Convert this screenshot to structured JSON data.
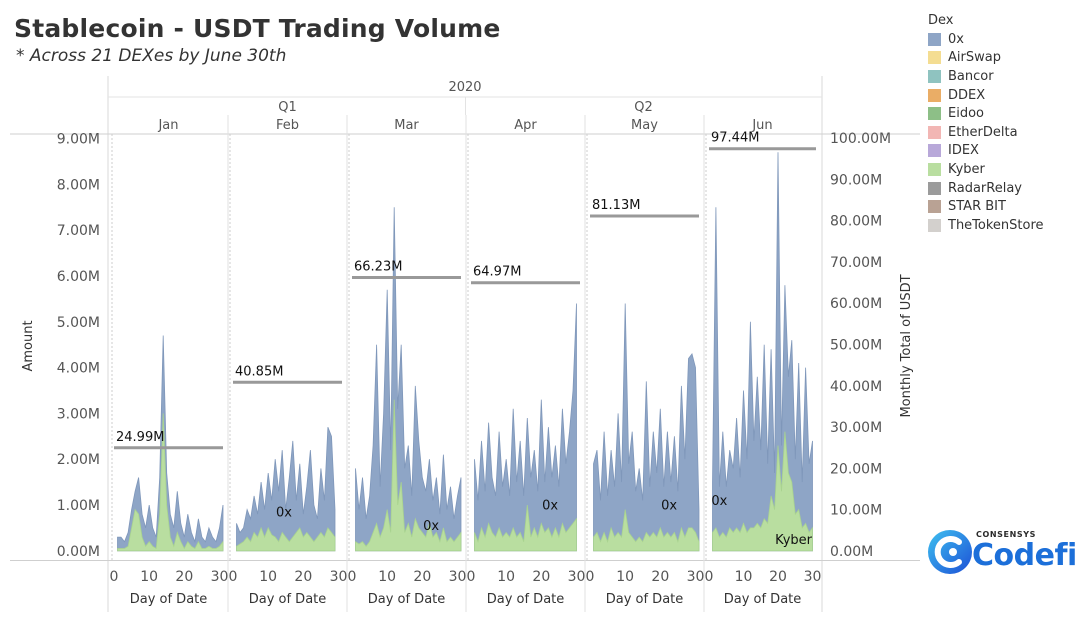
{
  "page": {
    "title": "Stablecoin - USDT Trading Volume",
    "subtitle": "* Across 21 DEXes by June 30th"
  },
  "legend": {
    "title": "Dex",
    "items": [
      {
        "label": "0x",
        "color": "#8ea5c6"
      },
      {
        "label": "AirSwap",
        "color": "#f4dd92"
      },
      {
        "label": "Bancor",
        "color": "#8fc3c0"
      },
      {
        "label": "DDEX",
        "color": "#eaad66"
      },
      {
        "label": "Eidoo",
        "color": "#8dbf87"
      },
      {
        "label": "EtherDelta",
        "color": "#f2b6b4"
      },
      {
        "label": "IDEX",
        "color": "#b8a8d9"
      },
      {
        "label": "Kyber",
        "color": "#b9dea0"
      },
      {
        "label": "RadarRelay",
        "color": "#9b9b9b"
      },
      {
        "label": "STAR BIT",
        "color": "#b9a294"
      },
      {
        "label": "TheTokenStore",
        "color": "#d3d0cd"
      }
    ]
  },
  "logo": {
    "top_text": "CONSENSYS",
    "main_text": "Codefi",
    "accent": "#1c6fd9"
  },
  "chart_data": {
    "type": "area",
    "year_label": "2020",
    "quarters": [
      {
        "label": "Q1",
        "months": [
          "Jan",
          "Feb",
          "Mar"
        ]
      },
      {
        "label": "Q2",
        "months": [
          "Apr",
          "May",
          "Jun"
        ]
      }
    ],
    "ylabel": "Amount",
    "y2label": "Monthly Total of USDT",
    "xlabel": "Day of Date",
    "y_ticks": [
      "0.00M",
      "1.00M",
      "2.00M",
      "3.00M",
      "4.00M",
      "5.00M",
      "6.00M",
      "7.00M",
      "8.00M",
      "9.00M"
    ],
    "y_tick_values": [
      0,
      1,
      2,
      3,
      4,
      5,
      6,
      7,
      8,
      9
    ],
    "ylim": [
      -0.2,
      9.1
    ],
    "y2_ticks": [
      "0.00M",
      "10.00M",
      "20.00M",
      "30.00M",
      "40.00M",
      "50.00M",
      "60.00M",
      "70.00M",
      "80.00M",
      "90.00M",
      "100.00M"
    ],
    "y2_tick_values": [
      0,
      10,
      20,
      30,
      40,
      50,
      60,
      70,
      80,
      90,
      100
    ],
    "y2lim": [
      -2.2,
      101.0
    ],
    "x_ticks": [
      "0",
      "10",
      "20",
      "30"
    ],
    "x_tick_values": [
      0,
      10,
      20,
      30
    ],
    "xlim": [
      0,
      31
    ],
    "series_colors": {
      "0x": "#8ea5c6",
      "Kyber": "#b9dea0"
    },
    "total_line_color": "#999999",
    "panels": [
      {
        "month": "Jan",
        "monthly_total": 24.99,
        "monthly_total_label": "24.99M",
        "area_label": "",
        "area_label_pos": [
          0,
          0
        ],
        "days": [
          1,
          2,
          3,
          4,
          5,
          6,
          7,
          8,
          9,
          10,
          11,
          12,
          13,
          14,
          15,
          16,
          17,
          18,
          19,
          20,
          21,
          22,
          23,
          24,
          25,
          26,
          27,
          28,
          29,
          30,
          31
        ],
        "series": [
          {
            "name": "0x",
            "values": [
              0.3,
              0.3,
              0.2,
              0.4,
              0.9,
              1.3,
              1.6,
              0.8,
              0.5,
              1.0,
              0.5,
              0.3,
              1.6,
              4.7,
              1.7,
              0.8,
              0.5,
              1.3,
              0.6,
              0.3,
              0.8,
              0.4,
              0.2,
              0.7,
              0.3,
              0.2,
              0.5,
              0.3,
              0.2,
              0.5,
              1.0
            ]
          },
          {
            "name": "Kyber",
            "values": [
              0.05,
              0.05,
              0.05,
              0.1,
              0.5,
              0.9,
              0.8,
              0.3,
              0.1,
              0.2,
              0.1,
              0.05,
              0.8,
              3.0,
              1.0,
              0.3,
              0.1,
              0.4,
              0.2,
              0.05,
              0.2,
              0.1,
              0.05,
              0.2,
              0.05,
              0.05,
              0.1,
              0.05,
              0.05,
              0.1,
              0.2
            ]
          }
        ]
      },
      {
        "month": "Feb",
        "monthly_total": 40.85,
        "monthly_total_label": "40.85M",
        "area_label": "0x",
        "area_label_pos": [
          14.5,
          0.75
        ],
        "days": [
          1,
          2,
          3,
          4,
          5,
          6,
          7,
          8,
          9,
          10,
          11,
          12,
          13,
          14,
          15,
          16,
          17,
          18,
          19,
          20,
          21,
          22,
          23,
          24,
          25,
          26,
          27,
          28,
          29
        ],
        "series": [
          {
            "name": "0x",
            "values": [
              0.6,
              0.4,
              0.5,
              0.9,
              0.7,
              1.2,
              0.8,
              1.5,
              0.9,
              1.7,
              1.1,
              2.0,
              1.3,
              2.2,
              0.9,
              1.6,
              2.4,
              1.1,
              1.9,
              0.8,
              1.4,
              2.2,
              1.0,
              0.7,
              1.8,
              1.1,
              2.7,
              2.5,
              0.9
            ]
          },
          {
            "name": "Kyber",
            "values": [
              0.1,
              0.15,
              0.2,
              0.3,
              0.2,
              0.4,
              0.3,
              0.5,
              0.3,
              0.5,
              0.35,
              0.3,
              0.2,
              0.4,
              0.3,
              0.2,
              0.3,
              0.4,
              0.5,
              0.3,
              0.4,
              0.3,
              0.2,
              0.3,
              0.4,
              0.3,
              0.5,
              0.4,
              0.3
            ]
          }
        ]
      },
      {
        "month": "Mar",
        "monthly_total": 66.23,
        "monthly_total_label": "66.23M",
        "area_label": "0x",
        "area_label_pos": [
          22.5,
          0.45
        ],
        "days": [
          1,
          2,
          3,
          4,
          5,
          6,
          7,
          8,
          9,
          10,
          11,
          12,
          13,
          14,
          15,
          16,
          17,
          18,
          19,
          20,
          21,
          22,
          23,
          24,
          25,
          26,
          27,
          28,
          29,
          30,
          31
        ],
        "series": [
          {
            "name": "0x",
            "values": [
              1.8,
              0.9,
              1.6,
              0.7,
              1.2,
              2.3,
              4.5,
              1.4,
              3.0,
              5.7,
              2.2,
              7.5,
              3.1,
              4.5,
              1.8,
              2.3,
              1.2,
              3.6,
              2.4,
              1.6,
              1.3,
              2.0,
              1.1,
              1.6,
              0.8,
              2.1,
              0.9,
              1.4,
              0.7,
              1.2,
              1.6
            ]
          },
          {
            "name": "Kyber",
            "values": [
              0.2,
              0.15,
              0.2,
              0.1,
              0.2,
              0.4,
              0.6,
              0.3,
              0.5,
              0.9,
              0.4,
              3.3,
              1.0,
              1.5,
              0.4,
              0.6,
              0.3,
              0.7,
              0.5,
              0.4,
              0.3,
              0.6,
              0.3,
              0.4,
              0.2,
              0.5,
              0.2,
              0.3,
              0.2,
              0.3,
              0.4
            ]
          }
        ]
      },
      {
        "month": "Apr",
        "monthly_total": 64.97,
        "monthly_total_label": "64.97M",
        "area_label": "0x",
        "area_label_pos": [
          22.5,
          0.9
        ],
        "days": [
          1,
          2,
          3,
          4,
          5,
          6,
          7,
          8,
          9,
          10,
          11,
          12,
          13,
          14,
          15,
          16,
          17,
          18,
          19,
          20,
          21,
          22,
          23,
          24,
          25,
          26,
          27,
          28,
          29,
          30
        ],
        "series": [
          {
            "name": "0x",
            "values": [
              2.0,
              1.1,
              2.4,
              1.3,
              2.8,
              1.6,
              1.2,
              2.6,
              1.4,
              2.0,
              1.2,
              3.1,
              1.5,
              2.4,
              1.2,
              2.9,
              1.6,
              2.2,
              1.3,
              3.3,
              1.5,
              2.7,
              1.6,
              2.3,
              1.4,
              3.1,
              1.9,
              2.6,
              3.5,
              5.4
            ]
          },
          {
            "name": "Kyber",
            "values": [
              0.4,
              0.2,
              0.5,
              0.3,
              0.6,
              0.4,
              0.3,
              0.5,
              0.3,
              0.4,
              0.3,
              0.5,
              0.3,
              0.4,
              0.2,
              1.0,
              0.3,
              0.5,
              0.3,
              0.6,
              0.4,
              0.5,
              0.3,
              0.5,
              0.3,
              0.6,
              0.4,
              0.5,
              0.6,
              0.7
            ]
          }
        ]
      },
      {
        "month": "May",
        "monthly_total": 81.13,
        "monthly_total_label": "81.13M",
        "area_label": "0x",
        "area_label_pos": [
          22.5,
          0.9
        ],
        "days": [
          1,
          2,
          3,
          4,
          5,
          6,
          7,
          8,
          9,
          10,
          11,
          12,
          13,
          14,
          15,
          16,
          17,
          18,
          19,
          20,
          21,
          22,
          23,
          24,
          25,
          26,
          27,
          28,
          29,
          30,
          31
        ],
        "series": [
          {
            "name": "0x",
            "values": [
              1.9,
              2.2,
              1.1,
              2.6,
              1.2,
              2.2,
              1.4,
              3.0,
              1.5,
              5.4,
              1.9,
              2.6,
              1.3,
              1.8,
              1.1,
              3.7,
              1.4,
              2.6,
              1.7,
              3.1,
              1.4,
              2.6,
              1.5,
              2.5,
              1.3,
              3.6,
              2.0,
              4.2,
              4.3,
              4.0,
              0.9
            ]
          },
          {
            "name": "Kyber",
            "values": [
              0.3,
              0.4,
              0.2,
              0.4,
              0.2,
              0.5,
              0.3,
              0.4,
              0.3,
              0.9,
              0.4,
              0.3,
              0.2,
              0.3,
              0.2,
              0.4,
              0.3,
              0.4,
              0.3,
              0.5,
              0.3,
              0.4,
              0.3,
              0.4,
              0.2,
              0.5,
              0.3,
              0.5,
              0.5,
              0.4,
              0.2
            ]
          }
        ]
      },
      {
        "month": "Jun",
        "monthly_total": 97.44,
        "monthly_total_label": "97.44M",
        "area_label": "0x",
        "area_label_pos": [
          3.0,
          1.0
        ],
        "area_label_2": "Kyber",
        "area_label_2_pos": [
          24.5,
          0.15
        ],
        "days": [
          1,
          2,
          3,
          4,
          5,
          6,
          7,
          8,
          9,
          10,
          11,
          12,
          13,
          14,
          15,
          16,
          17,
          18,
          19,
          20,
          21,
          22,
          23,
          24,
          25,
          26,
          27,
          28,
          29,
          30
        ],
        "series": [
          {
            "name": "0x",
            "values": [
              1.5,
              7.5,
              1.4,
              2.6,
              1.4,
              2.2,
              1.8,
              2.9,
              1.6,
              3.5,
              2.0,
              5.0,
              2.4,
              3.8,
              2.2,
              4.5,
              1.9,
              4.4,
              1.7,
              8.7,
              2.3,
              5.8,
              3.8,
              4.6,
              2.0,
              4.1,
              1.5,
              4.0,
              1.9,
              2.4
            ]
          },
          {
            "name": "Kyber",
            "values": [
              0.4,
              0.5,
              0.3,
              0.4,
              0.3,
              0.5,
              0.4,
              0.5,
              0.4,
              0.6,
              0.4,
              0.5,
              0.5,
              0.6,
              0.5,
              0.7,
              0.6,
              1.2,
              0.9,
              2.3,
              1.3,
              2.6,
              1.7,
              1.5,
              0.8,
              0.9,
              0.5,
              0.6,
              0.4,
              0.5
            ]
          }
        ]
      }
    ]
  }
}
